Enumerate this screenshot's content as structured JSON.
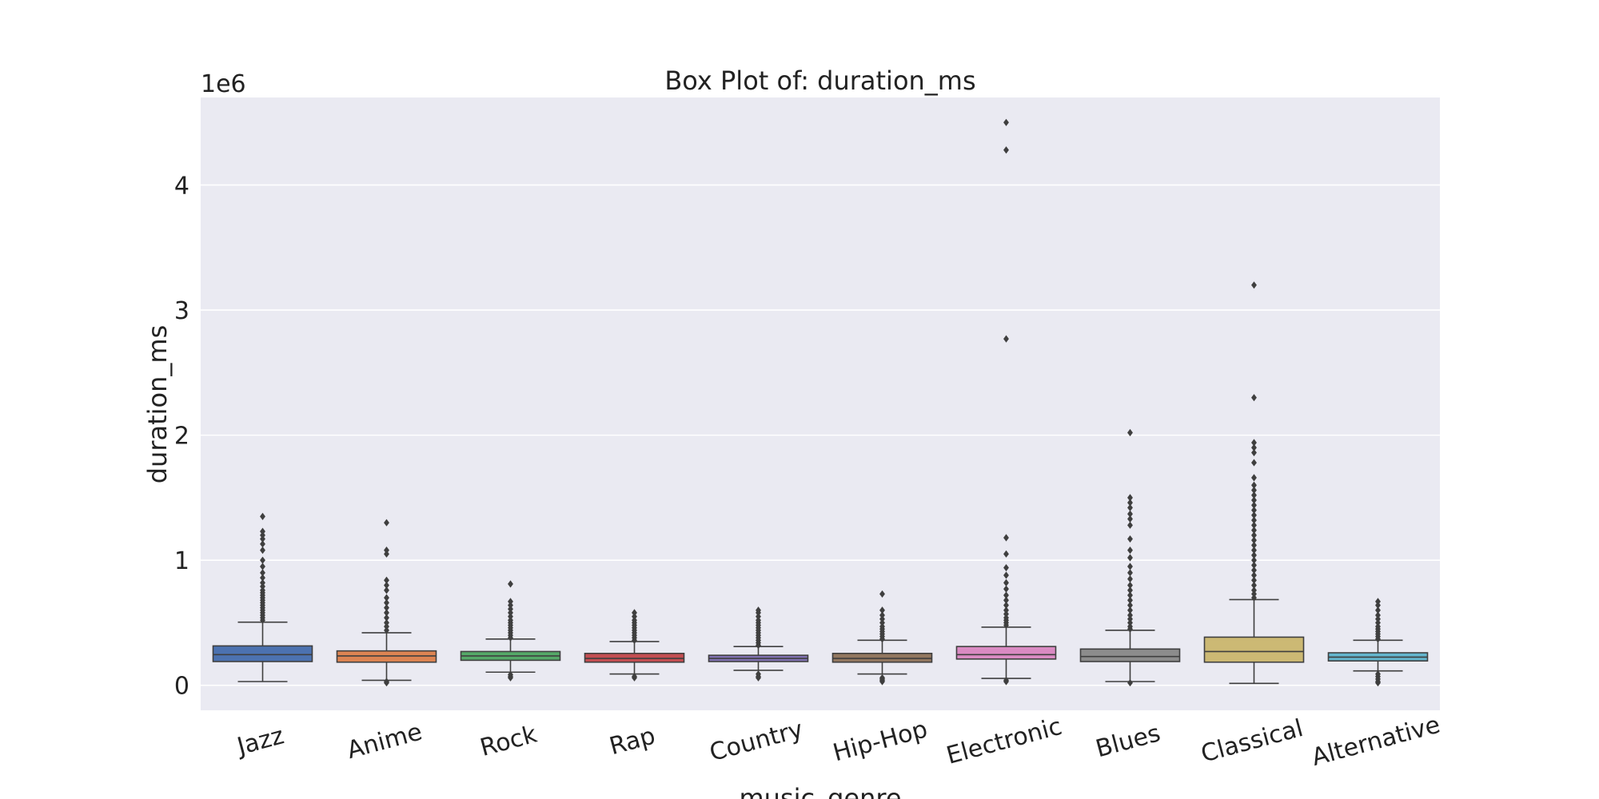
{
  "chart_data": {
    "type": "box",
    "title": "Box Plot of: duration_ms",
    "xlabel": "music_genre",
    "ylabel": "duration_ms",
    "y_offset_label": "1e6",
    "y_scale": 1000000,
    "ylim": [
      -0.2,
      4.7
    ],
    "yticks": [
      0,
      1,
      2,
      3,
      4
    ],
    "grid": true,
    "background": "#eaeaf2",
    "categories": [
      "Jazz",
      "Anime",
      "Rock",
      "Rap",
      "Country",
      "Hip-Hop",
      "Electronic",
      "Blues",
      "Classical",
      "Alternative"
    ],
    "boxes": [
      {
        "name": "Jazz",
        "color": "#4c72b0",
        "whisker_low": 0.03,
        "q1": 0.19,
        "median": 0.245,
        "q3": 0.315,
        "whisker_high": 0.505,
        "outliers": [
          0.52,
          0.54,
          0.56,
          0.58,
          0.6,
          0.62,
          0.64,
          0.66,
          0.68,
          0.7,
          0.72,
          0.74,
          0.76,
          0.79,
          0.82,
          0.86,
          0.9,
          0.95,
          1.0,
          1.08,
          1.13,
          1.17,
          1.2,
          1.23,
          1.35
        ]
      },
      {
        "name": "Anime",
        "color": "#dd8452",
        "whisker_low": 0.04,
        "q1": 0.185,
        "median": 0.235,
        "q3": 0.275,
        "whisker_high": 0.42,
        "outliers": [
          0.02,
          0.03,
          0.44,
          0.47,
          0.5,
          0.54,
          0.58,
          0.62,
          0.66,
          0.7,
          0.76,
          0.8,
          0.84,
          1.05,
          1.08,
          1.3
        ]
      },
      {
        "name": "Rock",
        "color": "#55a868",
        "whisker_low": 0.105,
        "q1": 0.2,
        "median": 0.235,
        "q3": 0.27,
        "whisker_high": 0.37,
        "outliers": [
          0.06,
          0.07,
          0.085,
          0.38,
          0.4,
          0.42,
          0.44,
          0.46,
          0.48,
          0.5,
          0.52,
          0.55,
          0.58,
          0.61,
          0.64,
          0.67,
          0.81
        ]
      },
      {
        "name": "Rap",
        "color": "#c44e52",
        "whisker_low": 0.09,
        "q1": 0.185,
        "median": 0.215,
        "q3": 0.255,
        "whisker_high": 0.35,
        "outliers": [
          0.06,
          0.07,
          0.36,
          0.38,
          0.4,
          0.42,
          0.44,
          0.46,
          0.48,
          0.5,
          0.52,
          0.55,
          0.58
        ]
      },
      {
        "name": "Country",
        "color": "#8172b3",
        "whisker_low": 0.12,
        "q1": 0.19,
        "median": 0.215,
        "q3": 0.24,
        "whisker_high": 0.31,
        "outliers": [
          0.06,
          0.07,
          0.09,
          0.32,
          0.34,
          0.36,
          0.38,
          0.4,
          0.42,
          0.44,
          0.46,
          0.48,
          0.5,
          0.52,
          0.55,
          0.58,
          0.6
        ]
      },
      {
        "name": "Hip-Hop",
        "color": "#937860",
        "whisker_low": 0.09,
        "q1": 0.185,
        "median": 0.215,
        "q3": 0.255,
        "whisker_high": 0.36,
        "outliers": [
          0.03,
          0.04,
          0.05,
          0.06,
          0.37,
          0.39,
          0.41,
          0.43,
          0.45,
          0.47,
          0.5,
          0.53,
          0.56,
          0.6,
          0.73
        ]
      },
      {
        "name": "Electronic",
        "color": "#da8bc3",
        "whisker_low": 0.055,
        "q1": 0.21,
        "median": 0.245,
        "q3": 0.31,
        "whisker_high": 0.465,
        "outliers": [
          0.03,
          0.04,
          0.48,
          0.5,
          0.52,
          0.54,
          0.57,
          0.6,
          0.64,
          0.68,
          0.72,
          0.77,
          0.82,
          0.88,
          0.94,
          1.05,
          1.18,
          2.77,
          4.28,
          4.5
        ]
      },
      {
        "name": "Blues",
        "color": "#8c8c8c",
        "whisker_low": 0.03,
        "q1": 0.19,
        "median": 0.23,
        "q3": 0.29,
        "whisker_high": 0.44,
        "outliers": [
          0.02,
          0.45,
          0.47,
          0.5,
          0.53,
          0.56,
          0.6,
          0.64,
          0.68,
          0.72,
          0.76,
          0.8,
          0.85,
          0.9,
          0.95,
          1.02,
          1.08,
          1.17,
          1.28,
          1.33,
          1.37,
          1.42,
          1.46,
          1.5,
          2.02
        ]
      },
      {
        "name": "Classical",
        "color": "#ccb974",
        "whisker_low": 0.015,
        "q1": 0.185,
        "median": 0.27,
        "q3": 0.385,
        "whisker_high": 0.685,
        "outliers": [
          0.7,
          0.73,
          0.76,
          0.8,
          0.84,
          0.88,
          0.92,
          0.96,
          1.0,
          1.04,
          1.08,
          1.12,
          1.16,
          1.2,
          1.24,
          1.28,
          1.32,
          1.36,
          1.4,
          1.44,
          1.48,
          1.52,
          1.56,
          1.6,
          1.66,
          1.78,
          1.86,
          1.9,
          1.94,
          2.3,
          3.2
        ]
      },
      {
        "name": "Alternative",
        "color": "#64b5cd",
        "whisker_low": 0.115,
        "q1": 0.195,
        "median": 0.225,
        "q3": 0.26,
        "whisker_high": 0.36,
        "outliers": [
          0.02,
          0.03,
          0.05,
          0.07,
          0.09,
          0.37,
          0.39,
          0.41,
          0.43,
          0.45,
          0.47,
          0.5,
          0.53,
          0.56,
          0.6,
          0.64,
          0.67
        ]
      }
    ]
  }
}
